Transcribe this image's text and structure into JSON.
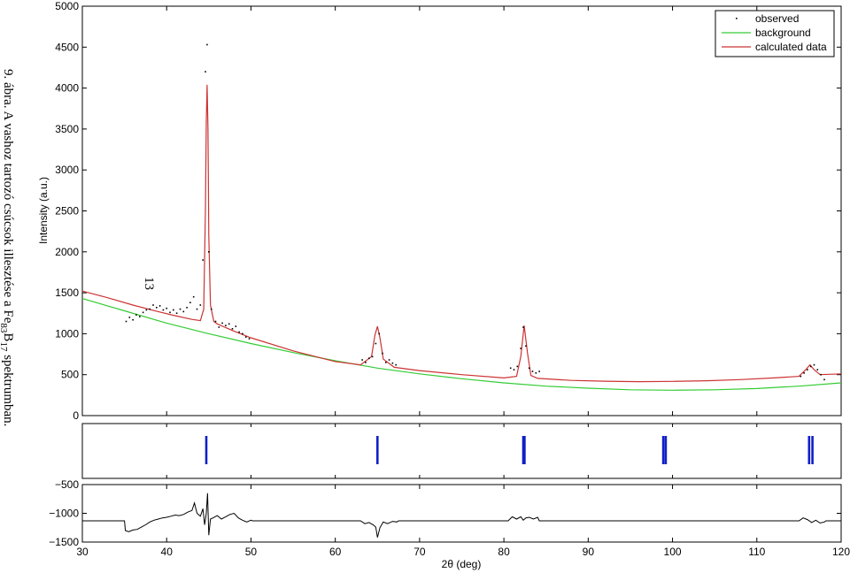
{
  "caption": {
    "prefix": "9. ábra. A vashoz tartozó csúcsok illesztése a Fe",
    "sub1": "83",
    "mid": "B",
    "sub2": "17",
    "suffix": " spektrumban."
  },
  "page_number": "13",
  "chart_data": [
    {
      "type": "scatter",
      "role": "main",
      "ylabel": "Intensity (a.u.)",
      "xlim": [
        30,
        120
      ],
      "ylim": [
        0,
        5000
      ],
      "yticks": [
        0,
        500,
        1000,
        1500,
        2000,
        2500,
        3000,
        3500,
        4000,
        4500,
        5000
      ],
      "xticks": [
        30,
        40,
        50,
        60,
        70,
        80,
        90,
        100,
        110,
        120
      ],
      "legend": {
        "position": "top-right",
        "entries": [
          {
            "label": "observed",
            "marker": "dot",
            "color": "#000000"
          },
          {
            "label": "background",
            "marker": "line",
            "color": "#33cc33"
          },
          {
            "label": "calculated data",
            "marker": "line",
            "color": "#cc3333"
          }
        ]
      },
      "background": {
        "color": "#33cc33",
        "x": [
          30,
          35,
          40,
          45,
          50,
          55,
          60,
          65,
          70,
          75,
          80,
          85,
          90,
          95,
          100,
          105,
          110,
          115,
          120
        ],
        "y": [
          1430,
          1280,
          1130,
          1000,
          880,
          770,
          670,
          580,
          510,
          450,
          400,
          360,
          335,
          315,
          310,
          315,
          330,
          360,
          400
        ]
      },
      "calculated": {
        "color": "#cc3333",
        "x": [
          30,
          33,
          36,
          39,
          41,
          43,
          44,
          44.4,
          44.6,
          44.7,
          44.8,
          44.9,
          45.0,
          45.2,
          45.6,
          46,
          48,
          50,
          55,
          60,
          63,
          64.3,
          64.7,
          65.0,
          65.3,
          65.7,
          67,
          70,
          75,
          80,
          81.5,
          82.0,
          82.4,
          82.8,
          83.2,
          84,
          88,
          92,
          96,
          100,
          104,
          108,
          112,
          115,
          115.8,
          116.3,
          116.8,
          117.5,
          120
        ],
        "y": [
          1520,
          1440,
          1350,
          1270,
          1220,
          1175,
          1160,
          1300,
          2500,
          3600,
          4040,
          3500,
          2200,
          1350,
          1150,
          1120,
          1030,
          950,
          790,
          660,
          620,
          720,
          980,
          1090,
          950,
          690,
          590,
          550,
          500,
          460,
          480,
          720,
          1100,
          760,
          490,
          455,
          430,
          420,
          415,
          418,
          425,
          440,
          460,
          480,
          560,
          620,
          560,
          500,
          510
        ]
      },
      "observed": {
        "color": "#000000",
        "x": [
          35.2,
          35.6,
          36.0,
          36.4,
          36.8,
          37.2,
          37.6,
          38.0,
          38.4,
          38.8,
          39.2,
          39.6,
          40.0,
          40.4,
          40.8,
          41.2,
          41.6,
          42.0,
          42.4,
          42.8,
          43.2,
          43.6,
          44.0,
          44.3,
          44.6,
          44.8,
          45.0,
          45.3,
          45.8,
          46.2,
          46.6,
          47.0,
          47.4,
          47.8,
          48.2,
          48.6,
          49.0,
          49.4,
          49.8,
          63.2,
          63.6,
          64.0,
          64.4,
          64.8,
          65.2,
          65.6,
          66.0,
          66.4,
          66.8,
          67.2,
          80.8,
          81.2,
          81.6,
          82.0,
          82.3,
          82.6,
          83.0,
          83.4,
          83.8,
          84.2,
          115.2,
          115.6,
          116.0,
          116.4,
          116.8,
          117.2,
          117.6,
          118.0
        ],
        "y": [
          1150,
          1200,
          1170,
          1230,
          1210,
          1260,
          1290,
          1300,
          1350,
          1320,
          1340,
          1290,
          1310,
          1260,
          1290,
          1250,
          1300,
          1270,
          1320,
          1380,
          1450,
          1300,
          1350,
          1900,
          4200,
          4530,
          2000,
          1300,
          1150,
          1080,
          1130,
          1100,
          1120,
          1060,
          1090,
          1020,
          1000,
          960,
          940,
          680,
          650,
          700,
          720,
          880,
          1000,
          760,
          650,
          680,
          640,
          620,
          580,
          560,
          600,
          820,
          1080,
          850,
          580,
          540,
          520,
          540,
          480,
          520,
          560,
          600,
          620,
          560,
          500,
          440
        ]
      }
    },
    {
      "type": "bar",
      "role": "bragg-positions",
      "xlim": [
        30,
        120
      ],
      "color": "#1020c8",
      "positions": [
        44.7,
        65.0,
        82.3,
        82.45,
        98.9,
        99.2,
        116.2,
        116.6
      ]
    },
    {
      "type": "line",
      "role": "difference",
      "xlabel": "2θ (deg)",
      "xlim": [
        30,
        120
      ],
      "ylim": [
        -1500,
        -500
      ],
      "yticks": [
        -1500,
        -1000,
        -500
      ],
      "xticks": [
        30,
        40,
        50,
        60,
        70,
        80,
        90,
        100,
        110,
        120
      ],
      "color": "#000000",
      "x": [
        30,
        35,
        35.1,
        35.5,
        36,
        36.5,
        37,
        37.5,
        38,
        38.5,
        39,
        39.5,
        40,
        40.5,
        41,
        41.5,
        42,
        42.5,
        43,
        43.3,
        43.6,
        44,
        44.3,
        44.5,
        44.7,
        44.85,
        45.0,
        45.2,
        45.5,
        46,
        46.5,
        47,
        47.5,
        48,
        48.5,
        49,
        49.5,
        50,
        50.2,
        63,
        63.5,
        64,
        64.5,
        64.8,
        65.0,
        65.3,
        65.7,
        66.2,
        66.8,
        67.3,
        67.5,
        80.5,
        81,
        81.5,
        82,
        82.3,
        82.6,
        83,
        83.5,
        84,
        84.2,
        115,
        115.5,
        116,
        116.5,
        117,
        117.5,
        118,
        118.2,
        120
      ],
      "y": [
        -1130,
        -1130,
        -1300,
        -1320,
        -1290,
        -1280,
        -1240,
        -1200,
        -1150,
        -1120,
        -1100,
        -1080,
        -1070,
        -1050,
        -1030,
        -1040,
        -1020,
        -980,
        -950,
        -820,
        -1000,
        -1050,
        -920,
        -1200,
        -1000,
        -650,
        -1380,
        -1100,
        -1080,
        -1040,
        -1100,
        -1060,
        -1020,
        -1000,
        -1080,
        -1120,
        -1150,
        -1120,
        -1130,
        -1130,
        -1180,
        -1160,
        -1200,
        -1240,
        -1420,
        -1250,
        -1150,
        -1180,
        -1140,
        -1150,
        -1130,
        -1130,
        -1060,
        -1100,
        -1060,
        -1120,
        -1080,
        -1070,
        -1100,
        -1070,
        -1130,
        -1130,
        -1080,
        -1110,
        -1160,
        -1120,
        -1170,
        -1150,
        -1130,
        -1130
      ]
    }
  ]
}
